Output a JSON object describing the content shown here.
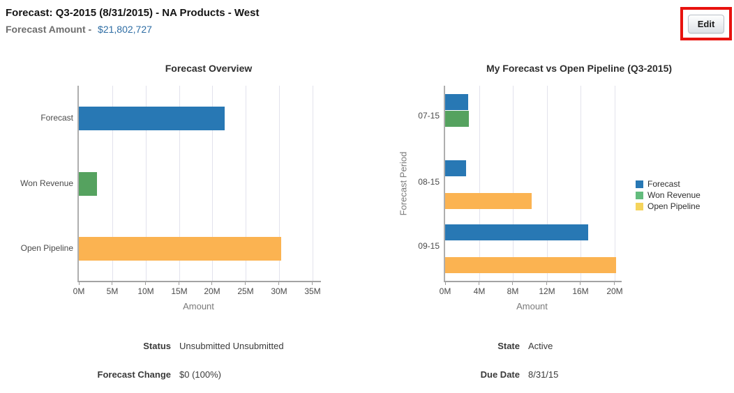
{
  "header": {
    "title": "Forecast: Q3-2015 (8/31/2015) - NA Products - West",
    "amount_label": "Forecast Amount -",
    "amount_value": "$21,802,727",
    "edit_button_label": "Edit"
  },
  "chart_data": [
    {
      "type": "bar",
      "orientation": "horizontal",
      "title": "Forecast Overview",
      "categories": [
        "Forecast",
        "Won Revenue",
        "Open Pipeline"
      ],
      "values": [
        21.8,
        2.7,
        30.3
      ],
      "values_unit": "millions",
      "xlabel": "Amount",
      "xlim": [
        0,
        35
      ],
      "xtick_step": 5,
      "xtick_labels": [
        "0M",
        "5M",
        "10M",
        "15M",
        "20M",
        "25M",
        "30M",
        "35M"
      ],
      "grid": true,
      "bar_colors": [
        "#2878b4",
        "#55a25f",
        "#fbb351"
      ]
    },
    {
      "type": "bar",
      "orientation": "horizontal",
      "grouped": true,
      "title": "My Forecast vs Open Pipeline (Q3-2015)",
      "categories": [
        "07-15",
        "08-15",
        "09-15"
      ],
      "series": [
        {
          "name": "Forecast",
          "color": "#2878b4",
          "values": [
            2.7,
            2.5,
            16.9
          ]
        },
        {
          "name": "Won Revenue",
          "color": "#55a25f",
          "values": [
            2.8,
            0,
            0
          ]
        },
        {
          "name": "Open Pipeline",
          "color": "#fbb351",
          "values": [
            0,
            10.2,
            20.2
          ]
        }
      ],
      "values_unit": "millions",
      "xlabel": "Amount",
      "ylabel": "Forecast Period",
      "xlim": [
        0,
        20
      ],
      "xtick_step": 4,
      "xtick_labels": [
        "0M",
        "4M",
        "8M",
        "12M",
        "16M",
        "20M"
      ],
      "grid": true,
      "legend_position": "right",
      "legend_swatch_colors": [
        "#2878b4",
        "#63bc7d",
        "#f5d45c"
      ]
    }
  ],
  "details": {
    "left": [
      {
        "label": "Status",
        "value": "Unsubmitted Unsubmitted"
      },
      {
        "label": "Forecast Change",
        "value": "$0 (100%)"
      }
    ],
    "right": [
      {
        "label": "State",
        "value": "Active"
      },
      {
        "label": "Due Date",
        "value": "8/31/15"
      }
    ]
  },
  "colors": {
    "forecast_blue": "#2878b4",
    "won_revenue_green": "#55a25f",
    "open_pipeline_orange": "#fbb351",
    "amount_text_blue": "#2e6da4",
    "annotation_red": "#e8120e"
  }
}
